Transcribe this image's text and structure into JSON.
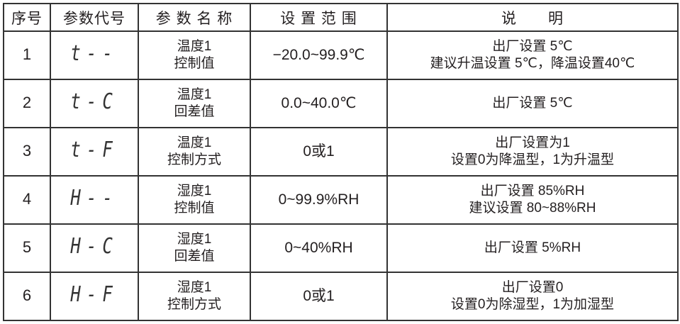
{
  "headers": [
    "序号",
    "参数代号",
    "参 数 名 称",
    "设 置 范 围",
    "说　　明"
  ],
  "rows": [
    {
      "no": "1",
      "code": "t--",
      "name": [
        "温度1",
        "控制值"
      ],
      "range": "−20.0~99.9℃",
      "desc": [
        "出厂设置 5℃",
        "建议升温设置 5℃，降温设置40℃"
      ]
    },
    {
      "no": "2",
      "code": "t-C",
      "name": [
        "温度1",
        "回差值"
      ],
      "range": "0.0~40.0℃",
      "desc": [
        "出厂设置 5℃",
        ""
      ]
    },
    {
      "no": "3",
      "code": "t-F",
      "name": [
        "温度1",
        "控制方式"
      ],
      "range": "0或1",
      "desc": [
        "出厂设置为1",
        "设置0为降温型，1为升温型"
      ]
    },
    {
      "no": "4",
      "code": "H--",
      "name": [
        "湿度1",
        "控制值"
      ],
      "range": "0~99.9%RH",
      "desc": [
        "出厂设置 85%RH",
        "建议设置 80~88%RH"
      ]
    },
    {
      "no": "5",
      "code": "H-C",
      "name": [
        "湿度1",
        "回差值"
      ],
      "range": "0~40%RH",
      "desc": [
        "出厂设置 5%RH",
        ""
      ]
    },
    {
      "no": "6",
      "code": "H-F",
      "name": [
        "湿度1",
        "控制方式"
      ],
      "range": "0或1",
      "desc": [
        "出厂设置0",
        "设置0为除湿型，1为加湿型"
      ]
    }
  ]
}
